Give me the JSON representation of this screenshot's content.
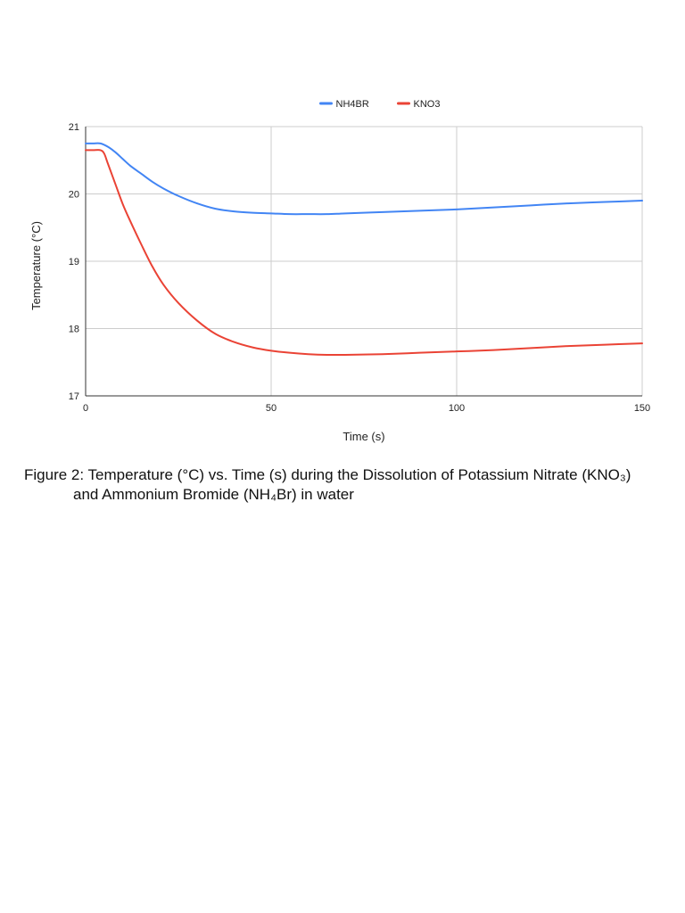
{
  "chart_data": {
    "type": "line",
    "title": "",
    "xlabel": "Time (s)",
    "ylabel": "Temperature (°C)",
    "xlim": [
      0,
      150
    ],
    "ylim": [
      17,
      21
    ],
    "x_ticks": [
      "0",
      "50",
      "100",
      "150"
    ],
    "y_ticks": [
      "17",
      "18",
      "19",
      "20",
      "21"
    ],
    "grid": true,
    "legend_position": "top-center",
    "series": [
      {
        "name": "NH4BR",
        "color": "#4285F4",
        "x": [
          0,
          2,
          4,
          6,
          8,
          10,
          12,
          15,
          18,
          21,
          25,
          30,
          35,
          40,
          45,
          50,
          55,
          60,
          65,
          70,
          80,
          90,
          100,
          110,
          120,
          130,
          140,
          150
        ],
        "y": [
          20.75,
          20.75,
          20.75,
          20.7,
          20.62,
          20.52,
          20.42,
          20.3,
          20.18,
          20.08,
          19.97,
          19.86,
          19.78,
          19.74,
          19.72,
          19.71,
          19.7,
          19.7,
          19.7,
          19.71,
          19.73,
          19.75,
          19.77,
          19.8,
          19.83,
          19.86,
          19.88,
          19.9
        ]
      },
      {
        "name": "KNO3",
        "color": "#EA4335",
        "x": [
          0,
          2,
          4,
          5,
          6,
          8,
          10,
          12,
          15,
          18,
          21,
          25,
          30,
          35,
          40,
          45,
          50,
          55,
          60,
          65,
          70,
          80,
          90,
          100,
          110,
          120,
          130,
          140,
          150
        ],
        "y": [
          20.65,
          20.65,
          20.65,
          20.6,
          20.45,
          20.15,
          19.85,
          19.6,
          19.25,
          18.92,
          18.65,
          18.38,
          18.12,
          17.92,
          17.8,
          17.72,
          17.67,
          17.64,
          17.62,
          17.61,
          17.61,
          17.62,
          17.64,
          17.66,
          17.68,
          17.71,
          17.74,
          17.76,
          17.78
        ]
      }
    ]
  },
  "caption": {
    "line1": "Figure 2: Temperature (°C) vs. Time (s) during the Dissolution of Potassium Nitrate (KNO₃)",
    "line2": "and Ammonium Bromide (NH₄Br) in water"
  }
}
